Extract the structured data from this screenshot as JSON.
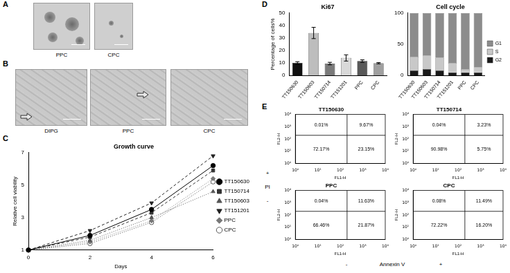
{
  "panel_labels": [
    "A",
    "B",
    "C",
    "D",
    "E"
  ],
  "images": {
    "A": [
      "PPC",
      "CPC"
    ],
    "B": [
      "DIPG",
      "PPC",
      "CPC"
    ]
  },
  "flow_axis_labels": {
    "x": "Annexin V",
    "x_signs": [
      "-",
      "+"
    ],
    "y": "PI",
    "y_signs": [
      "+",
      "-"
    ]
  },
  "chart_data": [
    {
      "type": "line",
      "title": "Growth curve",
      "x_label": "Days",
      "y_label": "Relative cell viability",
      "x": [
        0,
        2,
        4,
        6
      ],
      "xlim": [
        0,
        6
      ],
      "xticks": [
        0,
        2,
        4,
        6
      ],
      "ylim": [
        1,
        7
      ],
      "yticks": [
        1,
        3,
        5,
        7
      ],
      "legend": "right",
      "series": [
        {
          "name": "TT150630",
          "color": "#000000",
          "marker": "circle",
          "line_style": "solid",
          "values": [
            1,
            1.9,
            3.5,
            6.2
          ]
        },
        {
          "name": "TT150714",
          "color": "#333333",
          "marker": "square",
          "line_style": "dashed",
          "values": [
            1,
            1.8,
            3.3,
            5.9
          ]
        },
        {
          "name": "TT150603",
          "color": "#555555",
          "marker": "triangle",
          "line_style": "dotted",
          "values": [
            1,
            1.6,
            3.0,
            4.6
          ]
        },
        {
          "name": "TT151201",
          "color": "#222222",
          "marker": "triangle-down",
          "line_style": "dashed",
          "values": [
            1,
            2.2,
            3.9,
            6.8
          ]
        },
        {
          "name": "PPC",
          "color": "#777777",
          "marker": "diamond",
          "line_style": "dotted",
          "values": [
            1,
            1.5,
            2.8,
            5.4
          ]
        },
        {
          "name": "CPC",
          "color": "#555555",
          "marker": "open-circle",
          "line_style": "dotted",
          "values": [
            1,
            1.4,
            2.7,
            5.2
          ]
        }
      ]
    },
    {
      "type": "bar",
      "title": "Ki67",
      "y_label": "Percentage of cells%",
      "categories": [
        "TT150630",
        "TT150603",
        "TT150714",
        "TT151201",
        "PPC",
        "CPC"
      ],
      "values": [
        10,
        34,
        9.5,
        14,
        11.5,
        9.8
      ],
      "errors": [
        1,
        4.5,
        1,
        2.5,
        1,
        0.5
      ],
      "colors": [
        "#111111",
        "#bdbdbd",
        "#7a7a7a",
        "#d9d9d9",
        "#595959",
        "#a0a0a0"
      ],
      "ylim": [
        0,
        50
      ],
      "yticks": [
        0,
        10,
        20,
        30,
        40,
        50
      ]
    },
    {
      "type": "bar",
      "stacked": true,
      "title": "Cell cycle",
      "categories": [
        "TT150630",
        "TT150603",
        "TT150714",
        "TT151201",
        "PPC",
        "CPC"
      ],
      "ylim": [
        0,
        100
      ],
      "yticks": [
        0,
        50,
        100
      ],
      "legend": "right",
      "series": [
        {
          "name": "G2",
          "color": "#1a1a1a",
          "values": [
            8,
            10,
            8,
            5,
            5,
            5
          ]
        },
        {
          "name": "S",
          "color": "#c8c8c8",
          "values": [
            22,
            22,
            20,
            15,
            5,
            8
          ]
        },
        {
          "name": "G1",
          "color": "#8c8c8c",
          "values": [
            70,
            68,
            72,
            80,
            90,
            87
          ]
        }
      ]
    },
    {
      "type": "scatter",
      "title": "TT150630",
      "x_label": "FL1-H",
      "y_label": "FL2-H",
      "log": true,
      "xlim": [
        1,
        10000
      ],
      "ylim": [
        1,
        10000
      ],
      "xticks": [
        {
          "value": 1,
          "label": "10⁰"
        },
        {
          "value": 10,
          "label": "10¹"
        },
        {
          "value": 100,
          "label": "10²"
        },
        {
          "value": 1000,
          "label": "10³"
        },
        {
          "value": 10000,
          "label": "10⁴"
        }
      ],
      "yticks": [
        {
          "value": 1,
          "label": "10⁰"
        },
        {
          "value": 10,
          "label": "10¹"
        },
        {
          "value": 100,
          "label": "10²"
        },
        {
          "value": 1000,
          "label": "10³"
        },
        {
          "value": 10000,
          "label": "10⁴"
        }
      ],
      "gate": {
        "x": 200,
        "y": 200
      },
      "quadrant_values": [
        [
          0.01,
          9.67
        ],
        [
          72.17,
          23.15
        ]
      ],
      "quadrant_labels": [
        [
          "0.01%",
          "9.67%"
        ],
        [
          "72.17%",
          "23.15%"
        ]
      ]
    },
    {
      "type": "scatter",
      "title": "TT150714",
      "x_label": "FL1-H",
      "y_label": "FL2-H",
      "log": true,
      "xlim": [
        1,
        10000
      ],
      "ylim": [
        1,
        10000
      ],
      "xticks": [
        {
          "value": 1,
          "label": "10⁰"
        },
        {
          "value": 10,
          "label": "10¹"
        },
        {
          "value": 100,
          "label": "10²"
        },
        {
          "value": 1000,
          "label": "10³"
        },
        {
          "value": 10000,
          "label": "10⁴"
        }
      ],
      "yticks": [
        {
          "value": 1,
          "label": "10⁰"
        },
        {
          "value": 10,
          "label": "10¹"
        },
        {
          "value": 100,
          "label": "10²"
        },
        {
          "value": 1000,
          "label": "10³"
        },
        {
          "value": 10000,
          "label": "10⁴"
        }
      ],
      "gate": {
        "x": 200,
        "y": 200
      },
      "quadrant_values": [
        [
          0.04,
          3.23
        ],
        [
          90.98,
          5.75
        ]
      ],
      "quadrant_labels": [
        [
          "0.04%",
          "3.23%"
        ],
        [
          "90.98%",
          "5.75%"
        ]
      ]
    },
    {
      "type": "scatter",
      "title": "PPC",
      "x_label": "FL1-H",
      "y_label": "FL2-H",
      "log": true,
      "xlim": [
        1,
        10000
      ],
      "ylim": [
        1,
        10000
      ],
      "xticks": [
        {
          "value": 1,
          "label": "10⁰"
        },
        {
          "value": 10,
          "label": "10¹"
        },
        {
          "value": 100,
          "label": "10²"
        },
        {
          "value": 1000,
          "label": "10³"
        },
        {
          "value": 10000,
          "label": "10⁴"
        }
      ],
      "yticks": [
        {
          "value": 1,
          "label": "10⁰"
        },
        {
          "value": 10,
          "label": "10¹"
        },
        {
          "value": 100,
          "label": "10²"
        },
        {
          "value": 1000,
          "label": "10³"
        },
        {
          "value": 10000,
          "label": "10⁴"
        }
      ],
      "gate": {
        "x": 200,
        "y": 200
      },
      "quadrant_values": [
        [
          0.04,
          11.63
        ],
        [
          66.46,
          21.87
        ]
      ],
      "quadrant_labels": [
        [
          "0.04%",
          "11.63%"
        ],
        [
          "66.46%",
          "21.87%"
        ]
      ]
    },
    {
      "type": "scatter",
      "title": "CPC",
      "x_label": "FL1-H",
      "y_label": "FL2-H",
      "log": true,
      "xlim": [
        1,
        10000
      ],
      "ylim": [
        1,
        10000
      ],
      "xticks": [
        {
          "value": 1,
          "label": "10⁰"
        },
        {
          "value": 10,
          "label": "10¹"
        },
        {
          "value": 100,
          "label": "10²"
        },
        {
          "value": 1000,
          "label": "10³"
        },
        {
          "value": 10000,
          "label": "10⁴"
        }
      ],
      "yticks": [
        {
          "value": 1,
          "label": "10⁰"
        },
        {
          "value": 10,
          "label": "10¹"
        },
        {
          "value": 100,
          "label": "10²"
        },
        {
          "value": 1000,
          "label": "10³"
        },
        {
          "value": 10000,
          "label": "10⁴"
        }
      ],
      "gate": {
        "x": 200,
        "y": 200
      },
      "quadrant_values": [
        [
          0.08,
          11.49
        ],
        [
          72.22,
          16.2
        ]
      ],
      "quadrant_labels": [
        [
          "0.08%",
          "11.49%"
        ],
        [
          "72.22%",
          "16.20%"
        ]
      ]
    }
  ]
}
